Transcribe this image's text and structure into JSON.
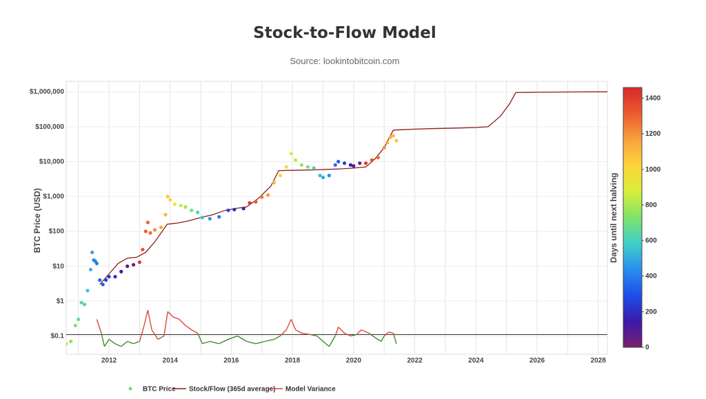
{
  "header": {
    "title": "Stock-to-Flow Model",
    "subtitle": "Source: lookintobitcoin.com"
  },
  "chart_data": {
    "type": "scatter",
    "title": "Stock-to-Flow Model",
    "subtitle": "Source: lookintobitcoin.com",
    "ylabel": "BTC Price (USD)",
    "xlabel": "",
    "y_scale": "log",
    "ylim": [
      0.03,
      2000000
    ],
    "xlim": [
      2010.6,
      2028.3
    ],
    "x_ticks": [
      2012,
      2014,
      2016,
      2018,
      2020,
      2022,
      2024,
      2026,
      2028
    ],
    "x_tick_labels": [
      "2012",
      "2014",
      "2016",
      "2018",
      "2020",
      "2022",
      "2024",
      "2026",
      "2028"
    ],
    "y_ticks": [
      0.1,
      1,
      10,
      100,
      1000,
      10000,
      100000,
      1000000
    ],
    "y_tick_labels": [
      "$0.1",
      "$1",
      "$10",
      "$100",
      "$1,000",
      "$10,000",
      "$100,000",
      "$1,000,000"
    ],
    "grid": true,
    "reference_line": {
      "y": 0.11
    },
    "colorbar": {
      "title": "Days until next halving",
      "range": [
        0,
        1460
      ],
      "ticks": [
        0,
        200,
        400,
        600,
        800,
        1000,
        1200,
        1400
      ],
      "colorscale": [
        "#7a1f6f",
        "#3a1aa8",
        "#1d4fe8",
        "#2a8ef0",
        "#3fd0c8",
        "#7fe36a",
        "#d8ee3a",
        "#ffd43b",
        "#f7a23c",
        "#ec5b2f",
        "#d62a2a"
      ]
    },
    "legend": {
      "position": "bottom",
      "items": [
        {
          "name": "BTC Price",
          "color": "#6ee36e",
          "symbol": "dot"
        },
        {
          "name": "Stock/Flow (365d average)",
          "color": "#8b1a1a",
          "symbol": "line"
        },
        {
          "name": "Model Variance",
          "color": "#e0443a",
          "symbol": "line"
        }
      ]
    },
    "series": [
      {
        "name": "BTC Price",
        "type": "scatter",
        "x": [
          2010.6,
          2010.75,
          2010.9,
          2011.0,
          2011.1,
          2011.2,
          2011.3,
          2011.4,
          2011.45,
          2011.5,
          2011.55,
          2011.6,
          2011.7,
          2011.8,
          2011.9,
          2012.0,
          2012.2,
          2012.4,
          2012.6,
          2012.8,
          2013.0,
          2013.1,
          2013.2,
          2013.27,
          2013.35,
          2013.5,
          2013.7,
          2013.85,
          2013.92,
          2014.0,
          2014.15,
          2014.35,
          2014.5,
          2014.7,
          2014.9,
          2015.05,
          2015.3,
          2015.6,
          2015.9,
          2016.1,
          2016.4,
          2016.6,
          2016.8,
          2017.0,
          2017.2,
          2017.4,
          2017.6,
          2017.8,
          2017.96,
          2018.1,
          2018.3,
          2018.5,
          2018.7,
          2018.9,
          2019.0,
          2019.2,
          2019.4,
          2019.5,
          2019.7,
          2019.9,
          2020.0,
          2020.2,
          2020.4,
          2020.6,
          2020.8,
          2021.0,
          2021.1,
          2021.2,
          2021.3,
          2021.4
        ],
        "y": [
          0.06,
          0.07,
          0.2,
          0.3,
          0.9,
          0.8,
          2,
          8,
          25,
          15,
          14,
          12,
          4,
          3,
          4,
          5,
          5,
          7,
          10,
          11,
          13,
          30,
          100,
          180,
          90,
          110,
          130,
          300,
          1000,
          800,
          600,
          550,
          500,
          400,
          350,
          250,
          230,
          260,
          400,
          420,
          450,
          650,
          700,
          950,
          1100,
          2500,
          4000,
          7000,
          17000,
          11000,
          8000,
          7000,
          6500,
          4000,
          3500,
          4000,
          8000,
          10000,
          9000,
          8000,
          7500,
          9000,
          9000,
          11000,
          13000,
          25000,
          35000,
          50000,
          55000,
          40000
        ],
        "days_until_halving": [
          800,
          760,
          720,
          680,
          640,
          600,
          560,
          520,
          480,
          440,
          400,
          380,
          350,
          320,
          280,
          240,
          200,
          150,
          80,
          30,
          1400,
          1350,
          1320,
          1300,
          1270,
          1200,
          1150,
          1100,
          1050,
          1000,
          920,
          850,
          780,
          700,
          620,
          560,
          470,
          380,
          270,
          200,
          90,
          1420,
          1330,
          1250,
          1170,
          1100,
          1020,
          950,
          890,
          830,
          760,
          700,
          620,
          550,
          500,
          440,
          360,
          330,
          240,
          160,
          110,
          30,
          1420,
          1350,
          1280,
          1200,
          1160,
          1120,
          1090,
          1060
        ]
      },
      {
        "name": "Stock/Flow (365d average)",
        "type": "line",
        "x": [
          2011.7,
          2012.0,
          2012.3,
          2012.6,
          2012.9,
          2013.2,
          2013.5,
          2013.9,
          2014.2,
          2014.6,
          2015.0,
          2015.4,
          2015.8,
          2016.2,
          2016.5,
          2016.9,
          2017.3,
          2017.55,
          2018.0,
          2018.4,
          2018.8,
          2019.2,
          2019.6,
          2020.0,
          2020.4,
          2020.7,
          2021.0,
          2021.3,
          2021.6,
          2022.0,
          2022.5,
          2023.0,
          2023.5,
          2024.0,
          2024.4,
          2024.8,
          2025.1,
          2025.3,
          2026.0,
          2027.0,
          2028.3
        ],
        "y": [
          3,
          6,
          12,
          17,
          18,
          25,
          50,
          160,
          170,
          200,
          250,
          300,
          400,
          460,
          500,
          900,
          2000,
          5500,
          5600,
          5700,
          5800,
          6000,
          6200,
          6500,
          7000,
          12000,
          25000,
          80000,
          82000,
          85000,
          88000,
          90000,
          92000,
          95000,
          100000,
          200000,
          450000,
          950000,
          970000,
          990000,
          1000000
        ]
      },
      {
        "name": "Model Variance",
        "type": "line",
        "x": [
          2011.6,
          2011.75,
          2011.85,
          2012.0,
          2012.2,
          2012.4,
          2012.6,
          2012.8,
          2013.0,
          2013.15,
          2013.27,
          2013.4,
          2013.6,
          2013.8,
          2013.92,
          2014.1,
          2014.3,
          2014.5,
          2014.7,
          2014.9,
          2015.05,
          2015.3,
          2015.6,
          2015.9,
          2016.2,
          2016.5,
          2016.8,
          2017.1,
          2017.4,
          2017.6,
          2017.8,
          2017.96,
          2018.1,
          2018.3,
          2018.6,
          2018.8,
          2019.0,
          2019.2,
          2019.4,
          2019.5,
          2019.7,
          2019.9,
          2020.1,
          2020.25,
          2020.5,
          2020.7,
          2020.9,
          2021.0,
          2021.15,
          2021.3,
          2021.4
        ],
        "y": [
          0.3,
          0.12,
          0.05,
          0.08,
          0.06,
          0.05,
          0.07,
          0.06,
          0.07,
          0.2,
          0.55,
          0.15,
          0.08,
          0.1,
          0.5,
          0.35,
          0.3,
          0.2,
          0.15,
          0.12,
          0.06,
          0.07,
          0.06,
          0.08,
          0.1,
          0.07,
          0.06,
          0.07,
          0.08,
          0.1,
          0.15,
          0.3,
          0.15,
          0.12,
          0.11,
          0.1,
          0.07,
          0.05,
          0.1,
          0.18,
          0.12,
          0.1,
          0.11,
          0.15,
          0.12,
          0.09,
          0.07,
          0.1,
          0.13,
          0.12,
          0.06
        ]
      }
    ]
  }
}
